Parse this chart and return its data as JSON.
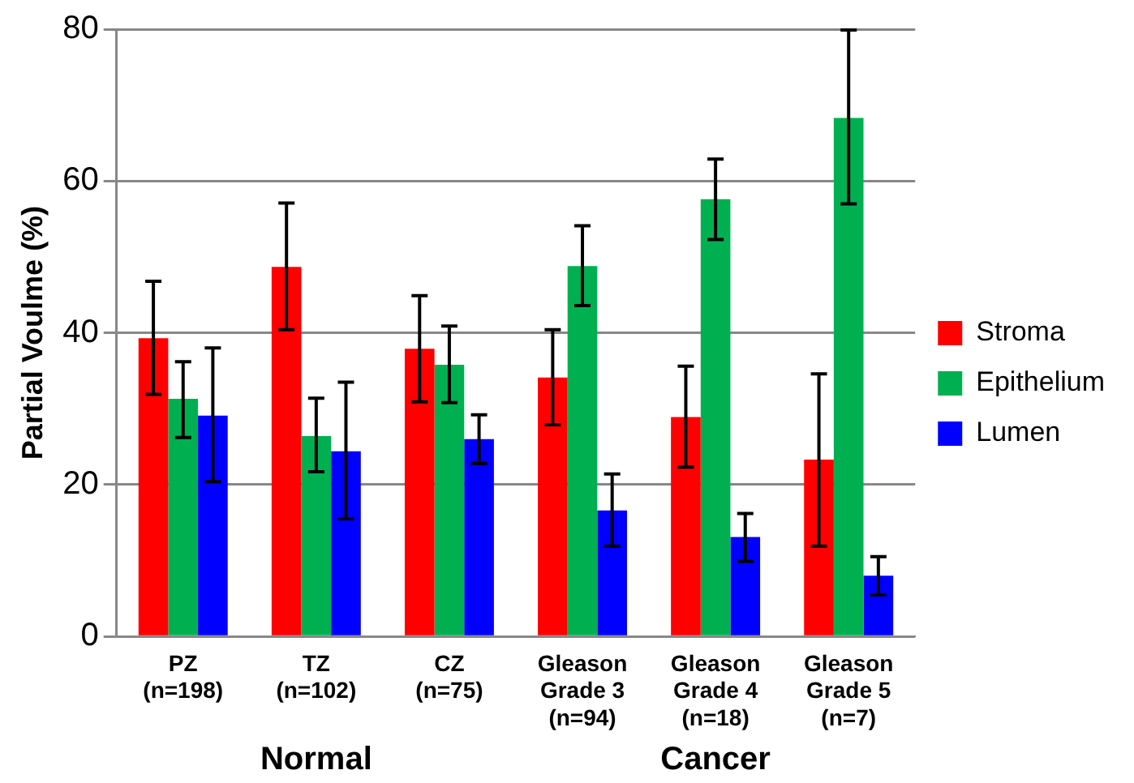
{
  "chart_data": {
    "type": "bar",
    "ylabel": "Partial Voulme (%)",
    "categories": [
      "PZ\n(n=198)",
      "TZ\n(n=102)",
      "CZ\n(n=75)",
      "Gleason\nGrade 3\n(n=94)",
      "Gleason\nGrade 4\n(n=18)",
      "Gleason\nGrade 5\n(n=7)"
    ],
    "series": [
      {
        "name": "Stroma",
        "color": "#ff0000",
        "values": [
          39.3,
          48.7,
          37.9,
          34.1,
          28.9,
          23.3
        ],
        "errors": [
          [
            31.9,
            46.8
          ],
          [
            40.4,
            57.1
          ],
          [
            30.9,
            44.9
          ],
          [
            27.9,
            40.4
          ],
          [
            22.3,
            35.6
          ],
          [
            11.9,
            34.6
          ]
        ]
      },
      {
        "name": "Epithelium",
        "color": "#00b050",
        "values": [
          31.3,
          26.4,
          35.8,
          48.8,
          57.6,
          68.3
        ],
        "errors": [
          [
            26.2,
            36.2
          ],
          [
            21.7,
            31.4
          ],
          [
            30.8,
            40.9
          ],
          [
            43.6,
            54.1
          ],
          [
            52.3,
            62.9
          ],
          [
            57.0,
            79.9
          ]
        ]
      },
      {
        "name": "Lumen",
        "color": "#0000ff",
        "values": [
          29.1,
          24.4,
          26.0,
          16.6,
          13.1,
          8.0
        ],
        "errors": [
          [
            20.4,
            38.0
          ],
          [
            15.5,
            33.5
          ],
          [
            22.8,
            29.2
          ],
          [
            11.9,
            21.4
          ],
          [
            9.9,
            16.2
          ],
          [
            5.5,
            10.5
          ]
        ]
      }
    ],
    "ylim": [
      0,
      80
    ],
    "yticks": [
      0,
      20,
      40,
      60,
      80
    ],
    "grid": "y",
    "legend": "right",
    "annotations": [
      "Normal",
      "Cancer"
    ]
  }
}
